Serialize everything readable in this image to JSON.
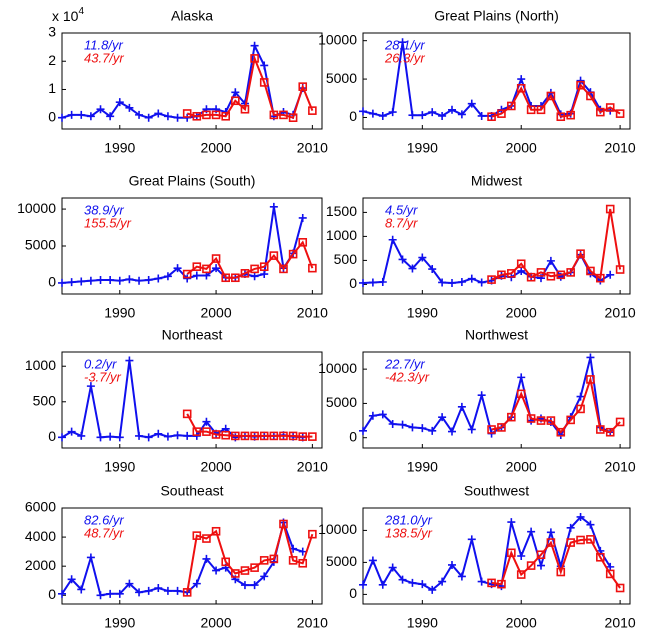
{
  "chart_data": [
    {
      "type": "line",
      "title": "Alaska",
      "y_scale_label": "x 10",
      "y_scale_exponent": "4",
      "x": [
        1984,
        1985,
        1986,
        1987,
        1988,
        1989,
        1990,
        1991,
        1992,
        1993,
        1994,
        1995,
        1996,
        1997,
        1998,
        1999,
        2000,
        2001,
        2002,
        2003,
        2004,
        2005,
        2006,
        2007,
        2008,
        2009,
        2010
      ],
      "xlim": [
        1984,
        2011
      ],
      "xticks": [
        1990,
        2000,
        2010
      ],
      "ylim": [
        -0.4,
        3
      ],
      "yticks": [
        0,
        1,
        2,
        3
      ],
      "series": [
        {
          "color": "#1010ee",
          "marker": "plus",
          "annotation": "11.8/yr",
          "values": [
            0,
            0.1,
            0.1,
            0.05,
            0.3,
            0.05,
            0.55,
            0.35,
            0.1,
            0,
            0.15,
            0.05,
            0,
            0,
            0.05,
            0.3,
            0.3,
            0.2,
            0.9,
            0.5,
            2.55,
            1.85,
            0.05,
            0.2,
            0.1,
            1.05,
            null
          ]
        },
        {
          "color": "#ee1010",
          "marker": "square",
          "annotation": "43.7/yr",
          "values": [
            null,
            null,
            null,
            null,
            null,
            null,
            null,
            null,
            null,
            null,
            null,
            null,
            null,
            0.15,
            0.05,
            0.1,
            0.1,
            0.05,
            0.6,
            0.3,
            2.1,
            1.25,
            0.1,
            0.1,
            0,
            1.1,
            0.25
          ]
        }
      ]
    },
    {
      "type": "line",
      "title": "Great Plains (North)",
      "x": [
        1984,
        1985,
        1986,
        1987,
        1988,
        1989,
        1990,
        1991,
        1992,
        1993,
        1994,
        1995,
        1996,
        1997,
        1998,
        1999,
        2000,
        2001,
        2002,
        2003,
        2004,
        2005,
        2006,
        2007,
        2008,
        2009,
        2010
      ],
      "xlim": [
        1984,
        2011
      ],
      "xticks": [
        1990,
        2000,
        2010
      ],
      "ylim": [
        -1500,
        11000
      ],
      "yticks": [
        0,
        5000,
        10000
      ],
      "series": [
        {
          "color": "#1010ee",
          "marker": "plus",
          "annotation": "28.1/yr",
          "values": [
            800,
            500,
            200,
            700,
            9800,
            300,
            300,
            700,
            200,
            1000,
            400,
            1800,
            200,
            200,
            1000,
            1500,
            5000,
            1500,
            1500,
            3200,
            400,
            500,
            4800,
            3300,
            1000,
            900,
            null
          ]
        },
        {
          "color": "#ee1010",
          "marker": "square",
          "annotation": "26.3/yr",
          "values": [
            null,
            null,
            null,
            null,
            null,
            null,
            null,
            null,
            null,
            null,
            null,
            null,
            null,
            100,
            500,
            1500,
            3800,
            1000,
            1000,
            2800,
            100,
            300,
            4200,
            2800,
            700,
            1300,
            500
          ]
        }
      ]
    },
    {
      "type": "line",
      "title": "Great Plains (South)",
      "x": [
        1984,
        1985,
        1986,
        1987,
        1988,
        1989,
        1990,
        1991,
        1992,
        1993,
        1994,
        1995,
        1996,
        1997,
        1998,
        1999,
        2000,
        2001,
        2002,
        2003,
        2004,
        2005,
        2006,
        2007,
        2008,
        2009,
        2010
      ],
      "xlim": [
        1984,
        2011
      ],
      "xticks": [
        1990,
        2000,
        2010
      ],
      "ylim": [
        -1500,
        11500
      ],
      "yticks": [
        0,
        5000,
        10000
      ],
      "series": [
        {
          "color": "#1010ee",
          "marker": "plus",
          "annotation": "38.9/yr",
          "values": [
            0,
            100,
            200,
            300,
            400,
            400,
            300,
            500,
            300,
            400,
            600,
            900,
            2000,
            600,
            1000,
            1000,
            2000,
            700,
            700,
            1200,
            900,
            1200,
            10300,
            2000,
            4000,
            8800,
            null
          ]
        },
        {
          "color": "#ee1010",
          "marker": "square",
          "annotation": "155.5/yr",
          "values": [
            null,
            null,
            null,
            null,
            null,
            null,
            null,
            null,
            null,
            null,
            null,
            null,
            null,
            1200,
            2200,
            1900,
            3300,
            700,
            700,
            1300,
            1900,
            2200,
            3700,
            1900,
            3900,
            5500,
            2000
          ]
        }
      ]
    },
    {
      "type": "line",
      "title": "Midwest",
      "x": [
        1984,
        1985,
        1986,
        1987,
        1988,
        1989,
        1990,
        1991,
        1992,
        1993,
        1994,
        1995,
        1996,
        1997,
        1998,
        1999,
        2000,
        2001,
        2002,
        2003,
        2004,
        2005,
        2006,
        2007,
        2008,
        2009,
        2010
      ],
      "xlim": [
        1984,
        2011
      ],
      "xticks": [
        1990,
        2000,
        2010
      ],
      "ylim": [
        -200,
        1800
      ],
      "yticks": [
        0,
        500,
        1000,
        1500
      ],
      "series": [
        {
          "color": "#1010ee",
          "marker": "plus",
          "annotation": "4.5/yr",
          "values": [
            30,
            40,
            50,
            930,
            520,
            330,
            560,
            320,
            40,
            30,
            50,
            120,
            40,
            80,
            180,
            150,
            280,
            160,
            130,
            490,
            160,
            250,
            620,
            230,
            80,
            200,
            null
          ]
        },
        {
          "color": "#ee1010",
          "marker": "square",
          "annotation": "8.7/yr",
          "values": [
            null,
            null,
            null,
            null,
            null,
            null,
            null,
            null,
            null,
            null,
            null,
            null,
            null,
            100,
            200,
            230,
            430,
            150,
            250,
            170,
            200,
            250,
            640,
            280,
            130,
            1570,
            310
          ]
        }
      ]
    },
    {
      "type": "line",
      "title": "Northeast",
      "x": [
        1984,
        1985,
        1986,
        1987,
        1988,
        1989,
        1990,
        1991,
        1992,
        1993,
        1994,
        1995,
        1996,
        1997,
        1998,
        1999,
        2000,
        2001,
        2002,
        2003,
        2004,
        2005,
        2006,
        2007,
        2008,
        2009,
        2010
      ],
      "xlim": [
        1984,
        2011
      ],
      "xticks": [
        1990,
        2000,
        2010
      ],
      "ylim": [
        -150,
        1200
      ],
      "yticks": [
        0,
        500,
        1000
      ],
      "series": [
        {
          "color": "#1010ee",
          "marker": "plus",
          "annotation": "0.2/yr",
          "values": [
            0,
            80,
            20,
            720,
            0,
            10,
            0,
            1080,
            20,
            0,
            50,
            10,
            30,
            20,
            20,
            220,
            50,
            120,
            0,
            20,
            10,
            20,
            20,
            30,
            10,
            0,
            null
          ]
        },
        {
          "color": "#ee1010",
          "marker": "square",
          "annotation": "-3.7/yr",
          "values": [
            null,
            null,
            null,
            null,
            null,
            null,
            null,
            null,
            null,
            null,
            null,
            null,
            null,
            330,
            80,
            80,
            40,
            30,
            20,
            20,
            20,
            20,
            20,
            20,
            20,
            10,
            10
          ]
        }
      ]
    },
    {
      "type": "line",
      "title": "Northwest",
      "x": [
        1984,
        1985,
        1986,
        1987,
        1988,
        1989,
        1990,
        1991,
        1992,
        1993,
        1994,
        1995,
        1996,
        1997,
        1998,
        1999,
        2000,
        2001,
        2002,
        2003,
        2004,
        2005,
        2006,
        2007,
        2008,
        2009,
        2010
      ],
      "xlim": [
        1984,
        2011
      ],
      "xticks": [
        1990,
        2000,
        2010
      ],
      "ylim": [
        -1500,
        12500
      ],
      "yticks": [
        0,
        5000,
        10000
      ],
      "series": [
        {
          "color": "#1010ee",
          "marker": "plus",
          "annotation": "22.7/yr",
          "values": [
            1000,
            3200,
            3400,
            2000,
            1900,
            1500,
            1400,
            1000,
            3000,
            900,
            4500,
            1200,
            6200,
            600,
            1500,
            3000,
            8800,
            2500,
            2800,
            2300,
            400,
            3000,
            6000,
            11700,
            1500,
            800,
            null
          ]
        },
        {
          "color": "#ee1010",
          "marker": "square",
          "annotation": "-42.3/yr",
          "values": [
            null,
            null,
            null,
            null,
            null,
            null,
            null,
            null,
            null,
            null,
            null,
            null,
            null,
            1200,
            1500,
            3000,
            6400,
            2800,
            2500,
            2500,
            800,
            2600,
            4200,
            8500,
            1200,
            800,
            2300
          ]
        }
      ]
    },
    {
      "type": "line",
      "title": "Southeast",
      "x": [
        1984,
        1985,
        1986,
        1987,
        1988,
        1989,
        1990,
        1991,
        1992,
        1993,
        1994,
        1995,
        1996,
        1997,
        1998,
        1999,
        2000,
        2001,
        2002,
        2003,
        2004,
        2005,
        2006,
        2007,
        2008,
        2009,
        2010
      ],
      "xlim": [
        1984,
        2011
      ],
      "xticks": [
        1990,
        2000,
        2010
      ],
      "ylim": [
        -600,
        6000
      ],
      "yticks": [
        0,
        2000,
        4000,
        6000
      ],
      "series": [
        {
          "color": "#1010ee",
          "marker": "plus",
          "annotation": "82.6/yr",
          "values": [
            100,
            1100,
            400,
            2600,
            0,
            100,
            100,
            800,
            200,
            300,
            500,
            300,
            300,
            200,
            800,
            2500,
            1700,
            1900,
            1100,
            700,
            700,
            1300,
            2300,
            5000,
            3200,
            3000,
            null
          ]
        },
        {
          "color": "#ee1010",
          "marker": "square",
          "annotation": "48.7/yr",
          "values": [
            null,
            null,
            null,
            null,
            null,
            null,
            null,
            null,
            null,
            null,
            null,
            null,
            null,
            200,
            4100,
            3900,
            4400,
            2300,
            1500,
            1700,
            1900,
            2400,
            2500,
            4900,
            2400,
            2200,
            4200
          ]
        }
      ]
    },
    {
      "type": "line",
      "title": "Southwest",
      "x": [
        1984,
        1985,
        1986,
        1987,
        1988,
        1989,
        1990,
        1991,
        1992,
        1993,
        1994,
        1995,
        1996,
        1997,
        1998,
        1999,
        2000,
        2001,
        2002,
        2003,
        2004,
        2005,
        2006,
        2007,
        2008,
        2009,
        2010
      ],
      "xlim": [
        1984,
        2011
      ],
      "xticks": [
        1990,
        2000,
        2010
      ],
      "ylim": [
        -1500,
        13500
      ],
      "yticks": [
        0,
        5000,
        10000
      ],
      "series": [
        {
          "color": "#1010ee",
          "marker": "plus",
          "annotation": "281.0/yr",
          "values": [
            1500,
            5300,
            1500,
            4200,
            2300,
            1800,
            1600,
            700,
            2000,
            4600,
            2800,
            8600,
            2000,
            1600,
            1300,
            11300,
            6000,
            9800,
            4500,
            9700,
            4400,
            10400,
            12100,
            10900,
            6800,
            4300,
            null
          ]
        },
        {
          "color": "#ee1010",
          "marker": "square",
          "annotation": "138.5/yr",
          "values": [
            null,
            null,
            null,
            null,
            null,
            null,
            null,
            null,
            null,
            null,
            null,
            null,
            null,
            1800,
            1600,
            6500,
            3100,
            4500,
            6200,
            8100,
            3500,
            8100,
            8500,
            8600,
            5800,
            3200,
            1000
          ]
        }
      ]
    }
  ]
}
